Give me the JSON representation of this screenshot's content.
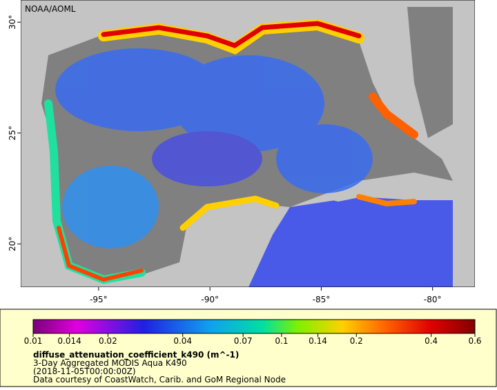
{
  "map": {
    "watermark": "NOAA/AOML",
    "xlim": [
      -98.5,
      -78.1
    ],
    "ylim": [
      18.05,
      31
    ],
    "xticks": [
      {
        "value": -95,
        "label": "-95°"
      },
      {
        "value": -90,
        "label": "-90°"
      },
      {
        "value": -85,
        "label": "-85°"
      },
      {
        "value": -80,
        "label": "-80°"
      }
    ],
    "yticks": [
      {
        "value": 30,
        "label": "30°"
      },
      {
        "value": 25,
        "label": "25°"
      },
      {
        "value": 20,
        "label": "20°"
      }
    ]
  },
  "colorbar": {
    "log": true,
    "range": [
      0.01,
      0.6
    ],
    "ticks": [
      0.01,
      0.014,
      0.02,
      0.04,
      0.07,
      0.1,
      0.14,
      0.2,
      0.4,
      0.6
    ]
  },
  "legend": {
    "title": "diffuse_attenuation_coefficient_k490 (m^-1)",
    "lines": [
      "3-Day Aggregated MODIS Aqua K490",
      "(2018-11-05T00:00:00Z)",
      "Data courtesy of CoastWatch, Carib. and GoM Regional Node"
    ]
  }
}
